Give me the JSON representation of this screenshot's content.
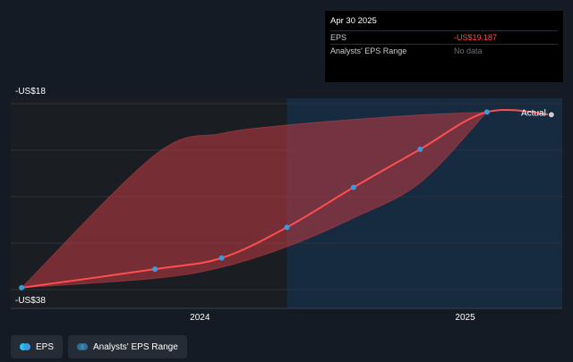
{
  "chart_data": {
    "type": "line",
    "x": [
      "2023-04-30",
      "2023-10-31",
      "2024-01-31",
      "2024-04-30",
      "2024-07-31",
      "2024-10-31",
      "2025-01-31",
      "2025-04-30"
    ],
    "ylim": [
      -38,
      -18
    ],
    "y_tick_labels": [
      "-US$18",
      "-US$38"
    ],
    "x_tick_labels": [
      "2024",
      "2025"
    ],
    "series": [
      {
        "name": "EPS",
        "color": "#ff4e50",
        "point_color": "#3b9be0",
        "values": [
          -37.8,
          -35.8,
          -34.6,
          -31.3,
          -27.0,
          -22.9,
          -18.9,
          -19.187
        ]
      }
    ],
    "range": {
      "name": "Analysts' EPS Range",
      "x": [
        "2023-04-30",
        "2023-10-31",
        "2024-01-31",
        "2024-04-30",
        "2024-07-31",
        "2024-10-31",
        "2025-01-31"
      ],
      "upper": [
        -37.8,
        -23.5,
        -21.2,
        -20.3,
        -19.7,
        -19.2,
        -18.9
      ],
      "lower": [
        -37.8,
        -36.8,
        -35.6,
        -33.4,
        -30.3,
        -26.5,
        -18.9
      ]
    },
    "actual_label": "Actual",
    "past_region_end": "2024-04-30",
    "colors": {
      "band": "#c23b41",
      "future_shade": "#162a40",
      "past_shade": "#1a1d22"
    }
  },
  "tooltip": {
    "date": "Apr 30 2025",
    "rows": [
      {
        "label": "EPS",
        "value": "-US$19.187"
      },
      {
        "label": "Analysts' EPS Range",
        "value": "No data"
      }
    ]
  },
  "legend": {
    "items": [
      {
        "label": "EPS",
        "color": "#3b9be0"
      },
      {
        "label": "Analysts' EPS Range",
        "color": "#3b9be0"
      }
    ]
  }
}
